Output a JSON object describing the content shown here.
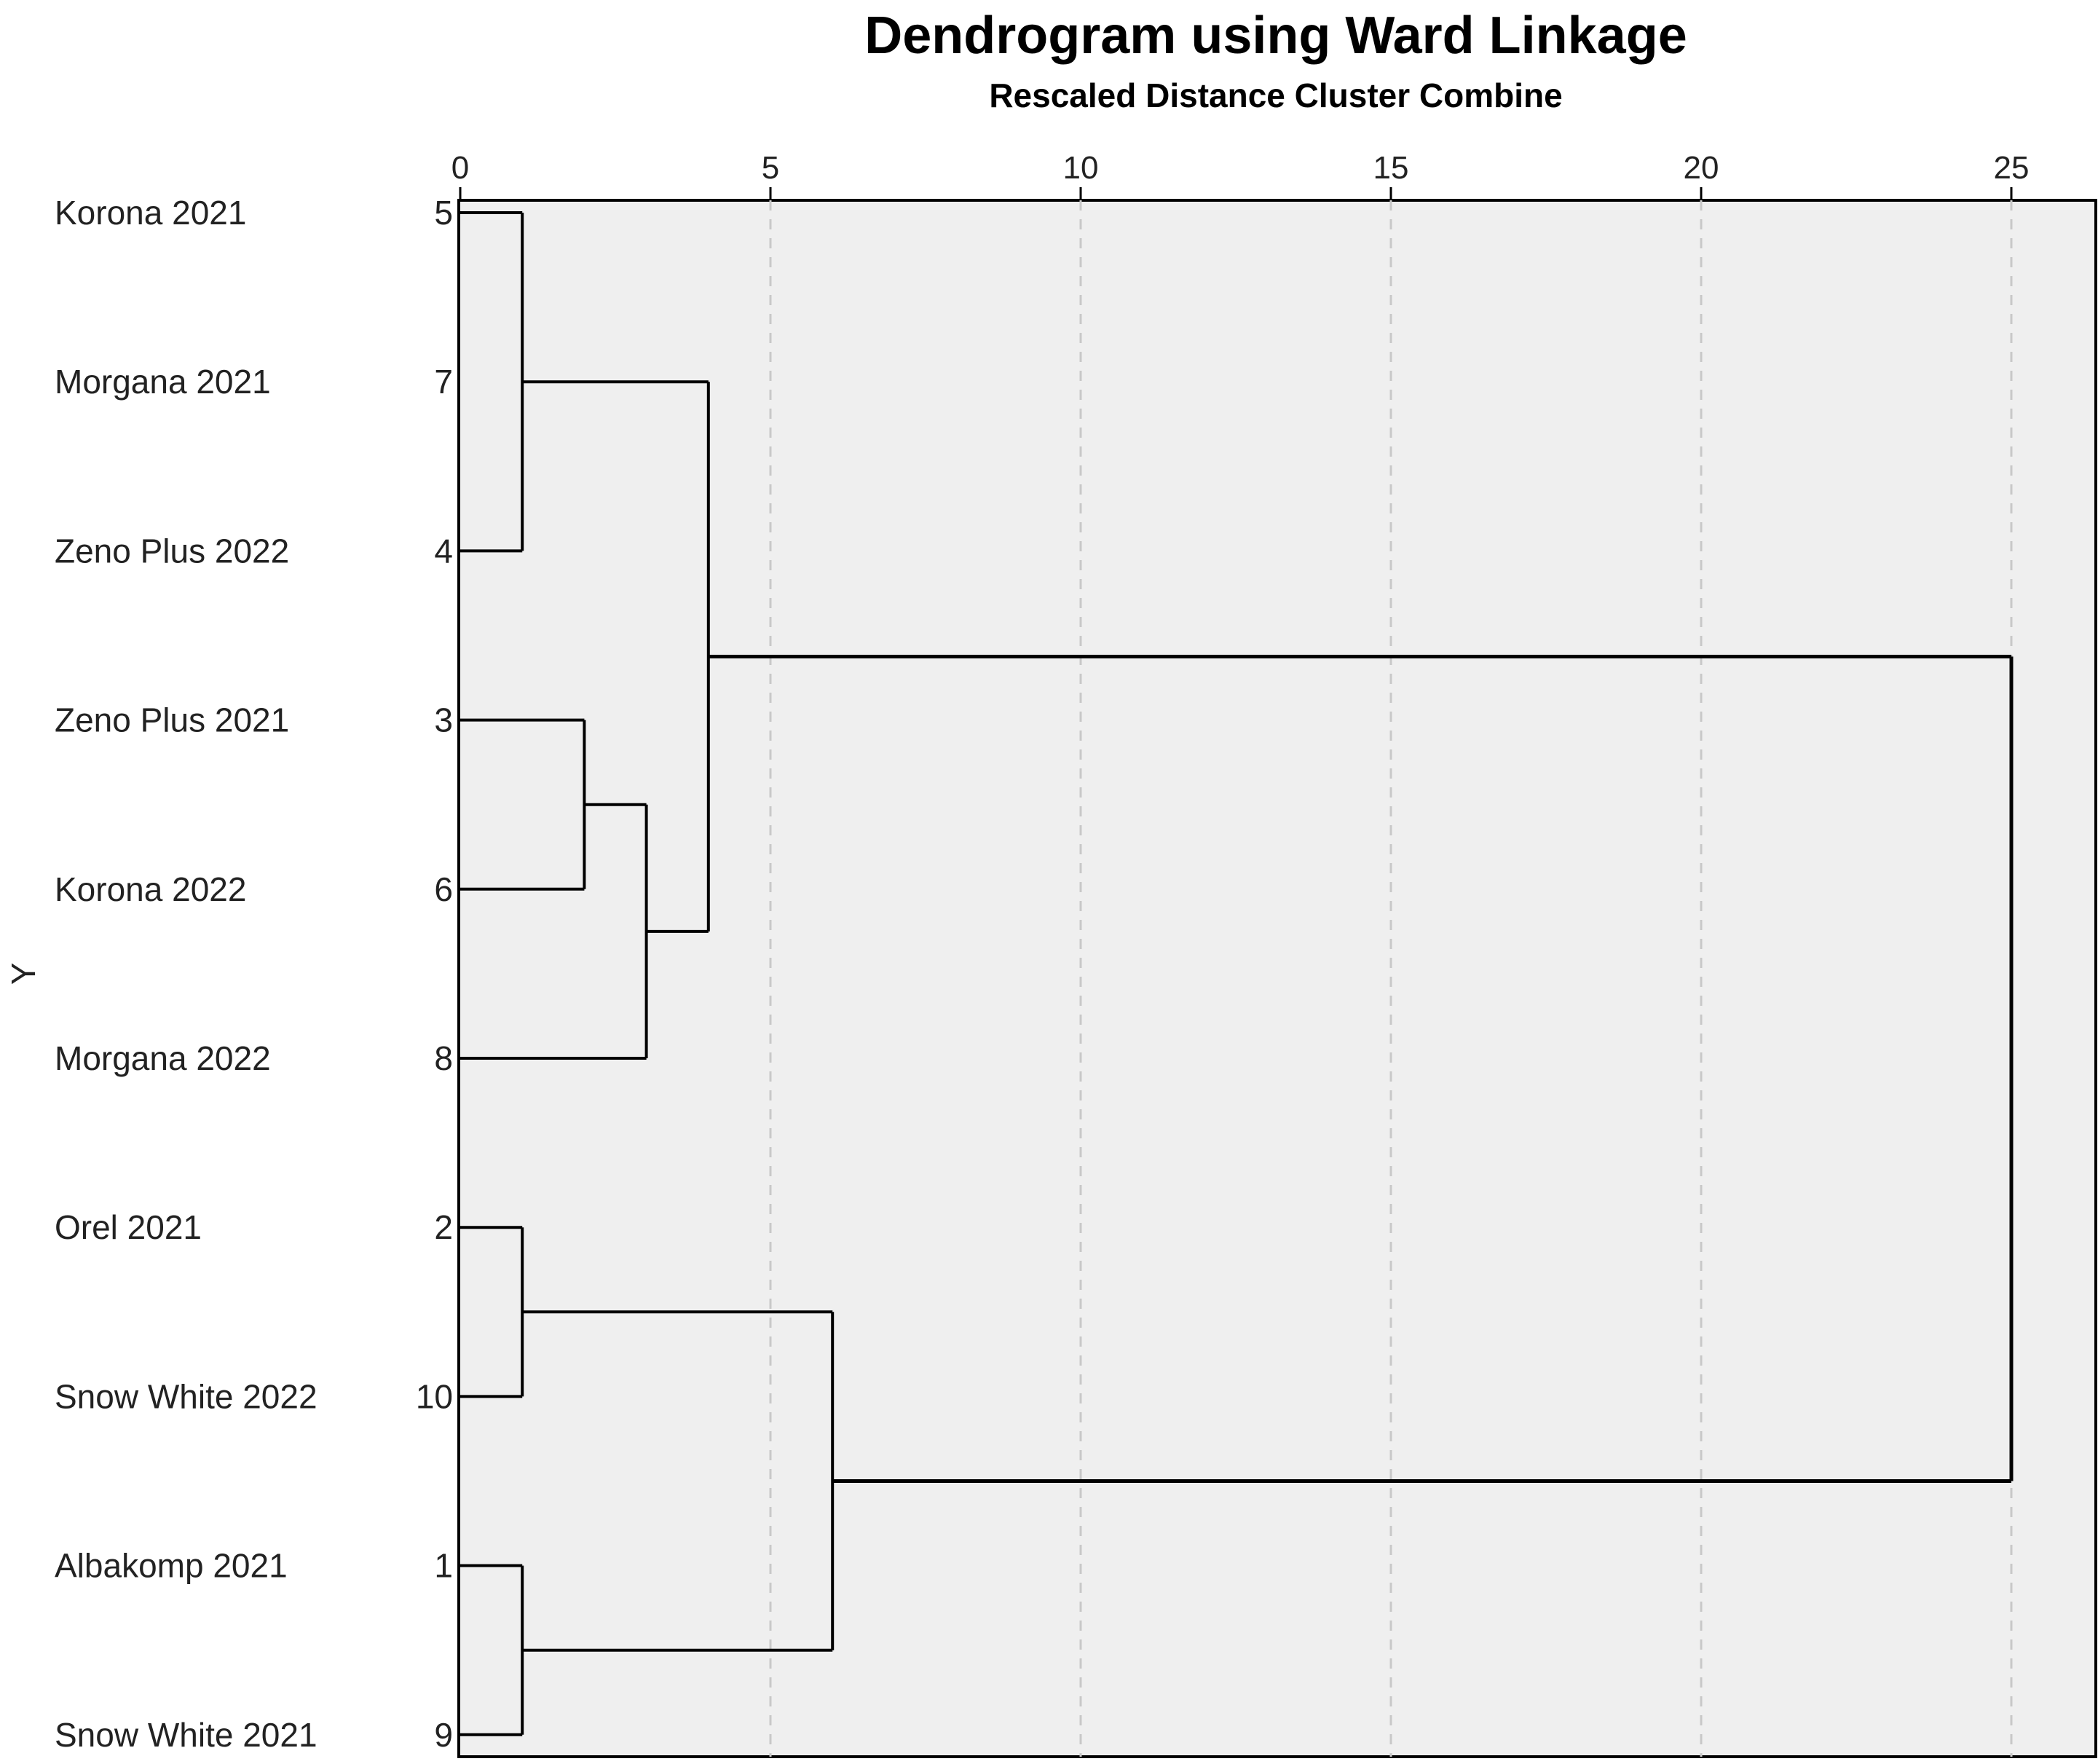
{
  "chart_data": {
    "type": "dendrogram",
    "title": "Dendrogram using Ward Linkage",
    "xlabel": "Rescaled Distance Cluster Combine",
    "ylabel": "Y",
    "xlim": [
      0,
      25
    ],
    "x_ticks": [
      0,
      5,
      10,
      15,
      20,
      25
    ],
    "grid": true,
    "leaves": [
      {
        "label": "Korona 2021",
        "id": "5"
      },
      {
        "label": "Morgana 2021",
        "id": "7"
      },
      {
        "label": "Zeno Plus 2022",
        "id": "4"
      },
      {
        "label": "Zeno Plus 2021",
        "id": "3"
      },
      {
        "label": "Korona 2022",
        "id": "6"
      },
      {
        "label": "Morgana 2022",
        "id": "8"
      },
      {
        "label": "Orel 2021",
        "id": "2"
      },
      {
        "label": "Snow White 2022",
        "id": "10"
      },
      {
        "label": "Albakomp 2021",
        "id": "1"
      },
      {
        "label": "Snow White 2021",
        "id": "9"
      }
    ],
    "merges": [
      {
        "name": "c1",
        "children": [
          0,
          2
        ],
        "height": 1
      },
      {
        "name": "c2",
        "children": [
          3,
          4
        ],
        "height": 2
      },
      {
        "name": "c3",
        "children": [
          "c2",
          5
        ],
        "height": 3
      },
      {
        "name": "c4",
        "children": [
          6,
          7
        ],
        "height": 1
      },
      {
        "name": "c5",
        "children": [
          8,
          9
        ],
        "height": 1
      },
      {
        "name": "c6",
        "children": [
          "c1",
          "c3"
        ],
        "height": 4
      },
      {
        "name": "c7",
        "children": [
          "c4",
          "c5"
        ],
        "height": 6
      },
      {
        "name": "c8",
        "children": [
          "c6",
          "c7"
        ],
        "height": 25
      }
    ]
  },
  "colors": {
    "plot_background": "#efefef",
    "frame": "#000000",
    "grid": "#c8c8c8",
    "line": "#000000"
  }
}
